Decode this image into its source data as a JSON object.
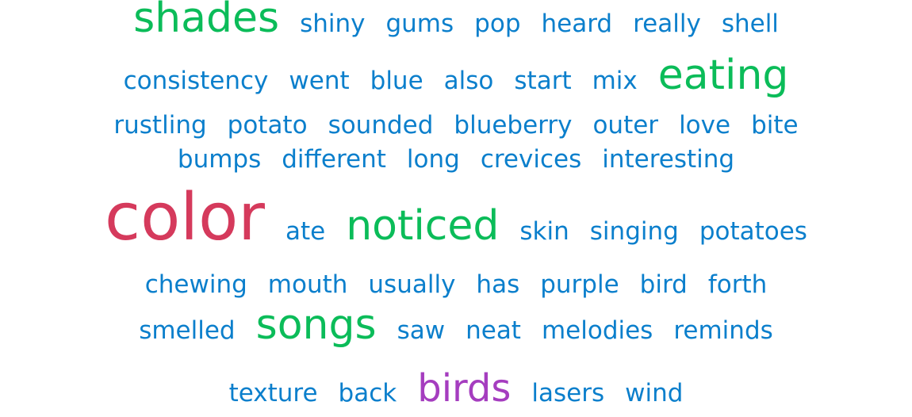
{
  "colors": {
    "blue": "#0b7fcc",
    "green": "#0bbc59",
    "red": "#d53a5c",
    "purple": "#a53dbf"
  },
  "rows": [
    {
      "words": [
        {
          "text": "shades",
          "size": "l",
          "color": "green"
        },
        {
          "text": "shiny",
          "size": "s",
          "color": "blue"
        },
        {
          "text": "gums",
          "size": "s",
          "color": "blue"
        },
        {
          "text": "pop",
          "size": "s",
          "color": "blue"
        },
        {
          "text": "heard",
          "size": "s",
          "color": "blue"
        },
        {
          "text": "really",
          "size": "s",
          "color": "blue"
        },
        {
          "text": "shell",
          "size": "s",
          "color": "blue"
        }
      ]
    },
    {
      "words": [
        {
          "text": "consistency",
          "size": "s",
          "color": "blue"
        },
        {
          "text": "went",
          "size": "s",
          "color": "blue"
        },
        {
          "text": "blue",
          "size": "s",
          "color": "blue"
        },
        {
          "text": "also",
          "size": "s",
          "color": "blue"
        },
        {
          "text": "start",
          "size": "s",
          "color": "blue"
        },
        {
          "text": "mix",
          "size": "s",
          "color": "blue"
        },
        {
          "text": "eating",
          "size": "l",
          "color": "green"
        }
      ]
    },
    {
      "words": [
        {
          "text": "rustling",
          "size": "s",
          "color": "blue"
        },
        {
          "text": "potato",
          "size": "s",
          "color": "blue"
        },
        {
          "text": "sounded",
          "size": "s",
          "color": "blue"
        },
        {
          "text": "blueberry",
          "size": "s",
          "color": "blue"
        },
        {
          "text": "outer",
          "size": "s",
          "color": "blue"
        },
        {
          "text": "love",
          "size": "s",
          "color": "blue"
        },
        {
          "text": "bite",
          "size": "s",
          "color": "blue"
        }
      ]
    },
    {
      "words": [
        {
          "text": "bumps",
          "size": "s",
          "color": "blue"
        },
        {
          "text": "different",
          "size": "s",
          "color": "blue"
        },
        {
          "text": "long",
          "size": "s",
          "color": "blue"
        },
        {
          "text": "crevices",
          "size": "s",
          "color": "blue"
        },
        {
          "text": "interesting",
          "size": "s",
          "color": "blue"
        }
      ]
    },
    {
      "words": [
        {
          "text": "color",
          "size": "xl",
          "color": "red"
        },
        {
          "text": "ate",
          "size": "s",
          "color": "blue"
        },
        {
          "text": "noticed",
          "size": "l",
          "color": "green"
        },
        {
          "text": "skin",
          "size": "s",
          "color": "blue"
        },
        {
          "text": "singing",
          "size": "s",
          "color": "blue"
        },
        {
          "text": "potatoes",
          "size": "s",
          "color": "blue"
        }
      ]
    },
    {
      "words": [
        {
          "text": "chewing",
          "size": "s",
          "color": "blue"
        },
        {
          "text": "mouth",
          "size": "s",
          "color": "blue"
        },
        {
          "text": "usually",
          "size": "s",
          "color": "blue"
        },
        {
          "text": "has",
          "size": "s",
          "color": "blue"
        },
        {
          "text": "purple",
          "size": "s",
          "color": "blue"
        },
        {
          "text": "bird",
          "size": "s",
          "color": "blue"
        },
        {
          "text": "forth",
          "size": "s",
          "color": "blue"
        }
      ]
    },
    {
      "words": [
        {
          "text": "smelled",
          "size": "s",
          "color": "blue"
        },
        {
          "text": "songs",
          "size": "l",
          "color": "green"
        },
        {
          "text": "saw",
          "size": "s",
          "color": "blue"
        },
        {
          "text": "neat",
          "size": "s",
          "color": "blue"
        },
        {
          "text": "melodies",
          "size": "s",
          "color": "blue"
        },
        {
          "text": "reminds",
          "size": "s",
          "color": "blue"
        }
      ]
    },
    {
      "words": [
        {
          "text": "texture",
          "size": "s",
          "color": "blue"
        },
        {
          "text": "back",
          "size": "s",
          "color": "blue"
        },
        {
          "text": "birds",
          "size": "m",
          "color": "purple"
        },
        {
          "text": "lasers",
          "size": "s",
          "color": "blue"
        },
        {
          "text": "wind",
          "size": "s",
          "color": "blue"
        }
      ]
    }
  ]
}
